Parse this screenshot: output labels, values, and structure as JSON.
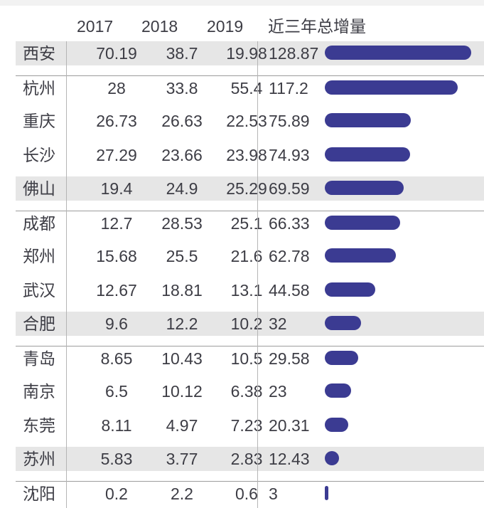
{
  "chart_data": {
    "type": "table",
    "columns": [
      "",
      "2017",
      "2018",
      "2019",
      "近三年总增量"
    ],
    "rows": [
      {
        "city": "西安",
        "y2017": "70.19",
        "y2018": "38.7",
        "y2019": "19.98",
        "total": "128.87",
        "total_value": 128.87
      },
      {
        "city": "杭州",
        "y2017": "28",
        "y2018": "33.8",
        "y2019": "55.4",
        "total": "117.2",
        "total_value": 117.2
      },
      {
        "city": "重庆",
        "y2017": "26.73",
        "y2018": "26.63",
        "y2019": "22.53",
        "total": "75.89",
        "total_value": 75.89
      },
      {
        "city": "长沙",
        "y2017": "27.29",
        "y2018": "23.66",
        "y2019": "23.98",
        "total": "74.93",
        "total_value": 74.93
      },
      {
        "city": "佛山",
        "y2017": "19.4",
        "y2018": "24.9",
        "y2019": "25.29",
        "total": "69.59",
        "total_value": 69.59
      },
      {
        "city": "成都",
        "y2017": "12.7",
        "y2018": "28.53",
        "y2019": "25.1",
        "total": "66.33",
        "total_value": 66.33
      },
      {
        "city": "郑州",
        "y2017": "15.68",
        "y2018": "25.5",
        "y2019": "21.6",
        "total": "62.78",
        "total_value": 62.78
      },
      {
        "city": "武汉",
        "y2017": "12.67",
        "y2018": "18.81",
        "y2019": "13.1",
        "total": "44.58",
        "total_value": 44.58
      },
      {
        "city": "合肥",
        "y2017": "9.6",
        "y2018": "12.2",
        "y2019": "10.2",
        "total": "32",
        "total_value": 32
      },
      {
        "city": "青岛",
        "y2017": "8.65",
        "y2018": "10.43",
        "y2019": "10.5",
        "total": "29.58",
        "total_value": 29.58
      },
      {
        "city": "南京",
        "y2017": "6.5",
        "y2018": "10.12",
        "y2019": "6.38",
        "total": "23",
        "total_value": 23
      },
      {
        "city": "东莞",
        "y2017": "8.11",
        "y2018": "4.97",
        "y2019": "7.23",
        "total": "20.31",
        "total_value": 20.31
      },
      {
        "city": "苏州",
        "y2017": "5.83",
        "y2018": "3.77",
        "y2019": "2.83",
        "total": "12.43",
        "total_value": 12.43
      },
      {
        "city": "沈阳",
        "y2017": "0.2",
        "y2018": "2.2",
        "y2019": "0.6",
        "total": "3",
        "total_value": 3
      }
    ],
    "bar_series": "近三年总增量",
    "bar_color": "#3b3b92",
    "shade_color": "#e6e6e6",
    "shaded_rows": [
      0,
      4,
      8,
      12
    ],
    "bordered_rows": [
      1,
      5,
      9,
      13
    ],
    "grid": false,
    "legend": "none"
  }
}
